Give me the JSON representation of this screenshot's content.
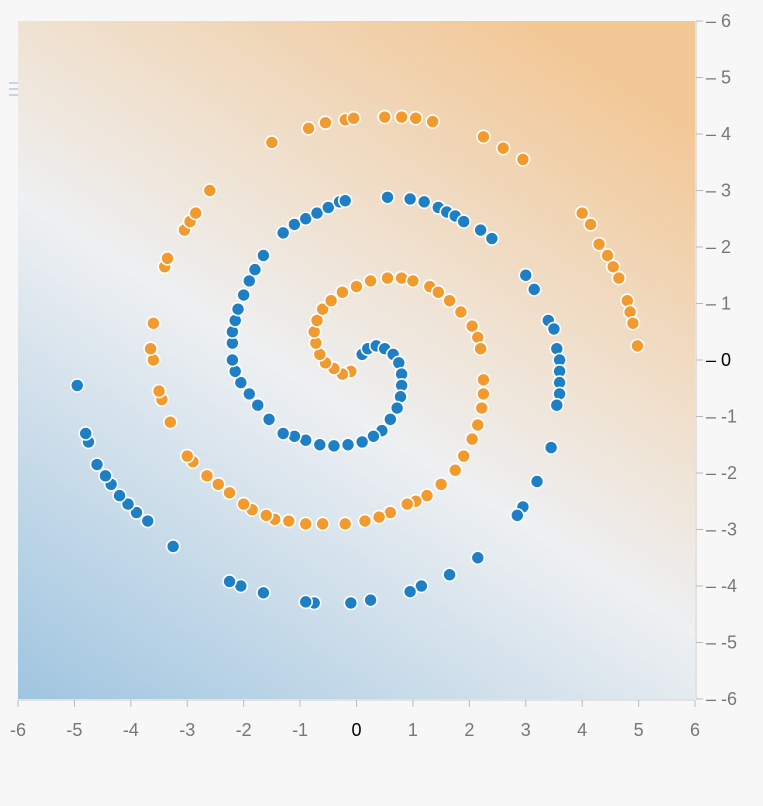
{
  "chart_data": {
    "type": "scatter",
    "title": "",
    "xlabel": "",
    "ylabel": "",
    "xlim": [
      -6,
      6
    ],
    "ylim": [
      -6,
      6
    ],
    "x_ticks": [
      -6,
      -5,
      -4,
      -3,
      -2,
      -1,
      0,
      1,
      2,
      3,
      4,
      5,
      6
    ],
    "y_ticks": [
      6,
      5,
      4,
      3,
      2,
      1,
      0,
      -1,
      -2,
      -3,
      -4,
      -5,
      -6
    ],
    "grid": false,
    "legend": "none",
    "background": {
      "kind": "decision-boundary-gradient",
      "top_right_color": "#f2c897",
      "mid_color": "#eef0f2",
      "bottom_left_color": "#9fc5e0"
    },
    "series": [
      {
        "color": "#1f7fc4",
        "points": [
          [
            0.1,
            0.1
          ],
          [
            0.2,
            0.2
          ],
          [
            0.35,
            0.25
          ],
          [
            0.5,
            0.2
          ],
          [
            0.65,
            0.1
          ],
          [
            0.75,
            -0.05
          ],
          [
            0.8,
            -0.25
          ],
          [
            0.8,
            -0.45
          ],
          [
            0.78,
            -0.65
          ],
          [
            0.72,
            -0.85
          ],
          [
            0.6,
            -1.05
          ],
          [
            0.45,
            -1.25
          ],
          [
            0.3,
            -1.35
          ],
          [
            0.1,
            -1.45
          ],
          [
            -0.15,
            -1.5
          ],
          [
            -0.4,
            -1.52
          ],
          [
            -0.65,
            -1.5
          ],
          [
            -0.9,
            -1.42
          ],
          [
            -1.1,
            -1.35
          ],
          [
            -1.3,
            -1.3
          ],
          [
            -1.55,
            -1.05
          ],
          [
            -1.75,
            -0.8
          ],
          [
            -1.9,
            -0.6
          ],
          [
            -2.05,
            -0.4
          ],
          [
            -2.15,
            -0.2
          ],
          [
            -2.2,
            0.0
          ],
          [
            -2.2,
            0.3
          ],
          [
            -2.2,
            0.5
          ],
          [
            -2.15,
            0.7
          ],
          [
            -2.1,
            0.9
          ],
          [
            -2.0,
            1.15
          ],
          [
            -1.9,
            1.4
          ],
          [
            -1.8,
            1.6
          ],
          [
            -1.65,
            1.85
          ],
          [
            -1.3,
            2.25
          ],
          [
            -1.1,
            2.4
          ],
          [
            -0.9,
            2.5
          ],
          [
            -0.7,
            2.6
          ],
          [
            -0.5,
            2.7
          ],
          [
            -0.3,
            2.8
          ],
          [
            -0.2,
            2.82
          ],
          [
            0.55,
            2.88
          ],
          [
            0.95,
            2.85
          ],
          [
            1.2,
            2.8
          ],
          [
            1.45,
            2.7
          ],
          [
            1.6,
            2.62
          ],
          [
            1.75,
            2.55
          ],
          [
            1.9,
            2.45
          ],
          [
            2.2,
            2.3
          ],
          [
            2.4,
            2.15
          ],
          [
            3.0,
            1.5
          ],
          [
            3.15,
            1.25
          ],
          [
            3.4,
            0.7
          ],
          [
            3.5,
            0.55
          ],
          [
            3.55,
            0.2
          ],
          [
            3.6,
            0.0
          ],
          [
            3.6,
            -0.2
          ],
          [
            3.6,
            -0.4
          ],
          [
            3.6,
            -0.6
          ],
          [
            3.55,
            -0.8
          ],
          [
            3.45,
            -1.55
          ],
          [
            3.2,
            -2.15
          ],
          [
            2.95,
            -2.6
          ],
          [
            2.85,
            -2.75
          ],
          [
            2.15,
            -3.5
          ],
          [
            1.65,
            -3.8
          ],
          [
            1.15,
            -4.0
          ],
          [
            0.95,
            -4.1
          ],
          [
            0.25,
            -4.25
          ],
          [
            -0.1,
            -4.3
          ],
          [
            -0.75,
            -4.3
          ],
          [
            -0.9,
            -4.28
          ],
          [
            -1.65,
            -4.12
          ],
          [
            -2.05,
            -4.0
          ],
          [
            -2.25,
            -3.92
          ],
          [
            -3.25,
            -3.3
          ],
          [
            -3.7,
            -2.85
          ],
          [
            -3.9,
            -2.7
          ],
          [
            -4.05,
            -2.55
          ],
          [
            -4.2,
            -2.4
          ],
          [
            -4.35,
            -2.2
          ],
          [
            -4.45,
            -2.05
          ],
          [
            -4.6,
            -1.85
          ],
          [
            -4.75,
            -1.45
          ],
          [
            -4.8,
            -1.3
          ],
          [
            -4.95,
            -0.45
          ]
        ]
      },
      {
        "color": "#f29a2e",
        "points": [
          [
            -0.1,
            -0.2
          ],
          [
            -0.25,
            -0.25
          ],
          [
            -0.4,
            -0.15
          ],
          [
            -0.55,
            -0.05
          ],
          [
            -0.65,
            0.1
          ],
          [
            -0.72,
            0.3
          ],
          [
            -0.75,
            0.5
          ],
          [
            -0.7,
            0.7
          ],
          [
            -0.6,
            0.9
          ],
          [
            -0.45,
            1.05
          ],
          [
            -0.25,
            1.2
          ],
          [
            0.0,
            1.3
          ],
          [
            0.25,
            1.4
          ],
          [
            0.55,
            1.45
          ],
          [
            0.8,
            1.45
          ],
          [
            1.0,
            1.4
          ],
          [
            1.3,
            1.3
          ],
          [
            1.45,
            1.2
          ],
          [
            1.65,
            1.05
          ],
          [
            1.85,
            0.85
          ],
          [
            2.05,
            0.6
          ],
          [
            2.15,
            0.4
          ],
          [
            2.2,
            0.2
          ],
          [
            2.25,
            -0.35
          ],
          [
            2.25,
            -0.6
          ],
          [
            2.22,
            -0.85
          ],
          [
            2.15,
            -1.15
          ],
          [
            2.05,
            -1.4
          ],
          [
            1.9,
            -1.7
          ],
          [
            1.75,
            -1.95
          ],
          [
            1.5,
            -2.2
          ],
          [
            1.25,
            -2.4
          ],
          [
            1.05,
            -2.5
          ],
          [
            0.9,
            -2.55
          ],
          [
            0.6,
            -2.7
          ],
          [
            0.4,
            -2.78
          ],
          [
            0.15,
            -2.85
          ],
          [
            -0.2,
            -2.9
          ],
          [
            -0.6,
            -2.9
          ],
          [
            -0.9,
            -2.9
          ],
          [
            -1.2,
            -2.85
          ],
          [
            -1.45,
            -2.82
          ],
          [
            -1.6,
            -2.75
          ],
          [
            -1.85,
            -2.65
          ],
          [
            -2.0,
            -2.55
          ],
          [
            -2.25,
            -2.35
          ],
          [
            -2.45,
            -2.2
          ],
          [
            -2.65,
            -2.05
          ],
          [
            -2.9,
            -1.8
          ],
          [
            -3.0,
            -1.7
          ],
          [
            -3.3,
            -1.1
          ],
          [
            -3.45,
            -0.7
          ],
          [
            -3.5,
            -0.55
          ],
          [
            -3.6,
            0.0
          ],
          [
            -3.65,
            0.2
          ],
          [
            -3.6,
            0.65
          ],
          [
            -3.4,
            1.65
          ],
          [
            -3.35,
            1.8
          ],
          [
            -3.05,
            2.3
          ],
          [
            -2.95,
            2.45
          ],
          [
            -2.85,
            2.6
          ],
          [
            -2.6,
            3.0
          ],
          [
            -1.5,
            3.85
          ],
          [
            -0.85,
            4.1
          ],
          [
            -0.55,
            4.2
          ],
          [
            -0.2,
            4.25
          ],
          [
            -0.05,
            4.28
          ],
          [
            0.5,
            4.3
          ],
          [
            0.8,
            4.3
          ],
          [
            1.05,
            4.28
          ],
          [
            1.35,
            4.22
          ],
          [
            2.25,
            3.95
          ],
          [
            2.6,
            3.75
          ],
          [
            2.95,
            3.55
          ],
          [
            4.0,
            2.6
          ],
          [
            4.15,
            2.4
          ],
          [
            4.3,
            2.05
          ],
          [
            4.45,
            1.85
          ],
          [
            4.55,
            1.65
          ],
          [
            4.65,
            1.45
          ],
          [
            4.8,
            1.05
          ],
          [
            4.85,
            0.85
          ],
          [
            4.9,
            0.65
          ],
          [
            4.98,
            0.25
          ]
        ]
      }
    ]
  }
}
